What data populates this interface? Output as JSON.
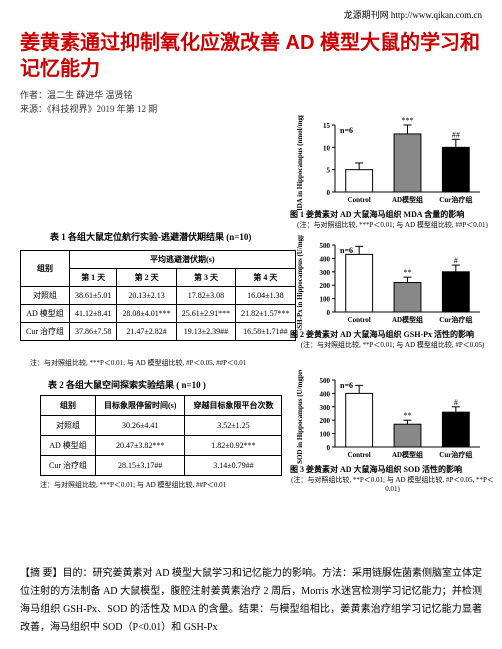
{
  "header_link": "龙源期刊网 http://www.qikan.com.cn",
  "title": "姜黄素通过抑制氧化应激改善 AD 模型大鼠的学习和记忆能力",
  "authors": "作者：温二生 薛进华 温贤铭",
  "source": "来源：《科技视界》2019 年第 12 期",
  "table1": {
    "title": "表 1  各组大鼠定位航行实验-逃避潜伏期结果",
    "n_note": "(n=10)",
    "subhead": "平均逃避潜伏期(s)",
    "col_group": "组别",
    "cols": [
      "第 1 天",
      "第 2 天",
      "第 3 天",
      "第 4 天"
    ],
    "rows": [
      {
        "label": "对照组",
        "cells": [
          "38.61±5.01",
          "20.13±2.13",
          "17.82±3.08",
          "16.04±1.38"
        ]
      },
      {
        "label": "AD 模型组",
        "cells": [
          "41.12±8.41",
          "28.08±4.01***",
          "25.61±2.91***",
          "21.82±1.57***"
        ]
      },
      {
        "label": "Cur 治疗组",
        "cells": [
          "37.86±7.58",
          "21.47±2.82#",
          "19.13±2.39##",
          "16.58±1.71##"
        ]
      }
    ],
    "foot": "注：与对照组比较, ***P＜0.01; 与 AD 模型组比较, #P＜0.05, ##P＜0.01"
  },
  "table2": {
    "title": "表 2  各组大鼠空间探索实验结果 ( n=10 )",
    "cols": [
      "组别",
      "目标象限停留时间(s)",
      "穿越目标象限平台次数"
    ],
    "rows": [
      {
        "cells": [
          "对照组",
          "30.26±4.41",
          "3.52±1.25"
        ]
      },
      {
        "cells": [
          "AD 模型组",
          "20.47±3.82***",
          "1.82±0.92***"
        ]
      },
      {
        "cells": [
          "Cur 治疗组",
          "28.15±3.17##",
          "3.14±0.79##"
        ]
      }
    ],
    "foot": "注：与对照组比较, ***P＜0.01; 与 AD 模型组比较, ##P＜0.01"
  },
  "chart1": {
    "ylabel": "MDA in Hippocampus (nmol/mgprot)",
    "n": "n=6",
    "categories": [
      "Control",
      "AD模型组",
      "Cur治疗组"
    ],
    "values": [
      5,
      13,
      10
    ],
    "errors": [
      1.5,
      2,
      1.8
    ],
    "fills": [
      "#ffffff",
      "#888888",
      "#000000"
    ],
    "sig": [
      "",
      "***",
      "##"
    ],
    "ymax": 15,
    "ytick": 5,
    "caption": "图 1  姜黄素对 AD 大鼠海马组织 MDA 含量的影响",
    "note": "(注：与对照组比较, ***P＜0.01; 与 AD 模型组比较, ##P＜0.01)"
  },
  "chart2": {
    "ylabel": "GSH-Px in Hippocampus (U/mgprot)",
    "n": "n=6",
    "categories": [
      "Control",
      "AD模型组",
      "Cur治疗组"
    ],
    "values": [
      430,
      220,
      300
    ],
    "errors": [
      60,
      40,
      50
    ],
    "fills": [
      "#ffffff",
      "#888888",
      "#000000"
    ],
    "sig": [
      "",
      "**",
      "#"
    ],
    "ymax": 500,
    "ytick": 100,
    "caption": "图 2  姜黄素对 AD 大鼠海马组织 GSH-Px 活性的影响",
    "note": "(注：与对照组比较, **P＜0.01; 与 AD 模型组比较, #P＜0.05)"
  },
  "chart3": {
    "ylabel": "SOD in Hippocampus (U/mgprot)",
    "n": "n=6",
    "categories": [
      "Control",
      "AD模型组",
      "Cur治疗组"
    ],
    "values": [
      400,
      170,
      260
    ],
    "errors": [
      60,
      30,
      40
    ],
    "fills": [
      "#ffffff",
      "#888888",
      "#000000"
    ],
    "sig": [
      "",
      "**",
      "#"
    ],
    "ymax": 500,
    "ytick": 100,
    "caption": "图 3  姜黄素对 AD 大鼠海马组织 SOD 活性的影响",
    "note": "(注：与对照组比较, **P＜0.01; 与 AD 模型组比较, #P＜0.05, **P＜0.01)"
  },
  "abstract": "【摘 要】目的：研究姜黄素对 AD 模型大鼠学习和记忆能力的影响。方法：采用链脲佐菌素侧脑室立体定位注射的方法制备 AD 大鼠模型，腹腔注射姜黄素治疗 2 周后，Morris 水迷宫检测学习记忆能力；并检测海马组织 GSH-Px、SOD 的活性及 MDA 的含量。结果：与模型组相比，姜黄素治疗组学习记忆能力显著改善，海马组织中 SOD（P<0.01）和 GSH-Px"
}
